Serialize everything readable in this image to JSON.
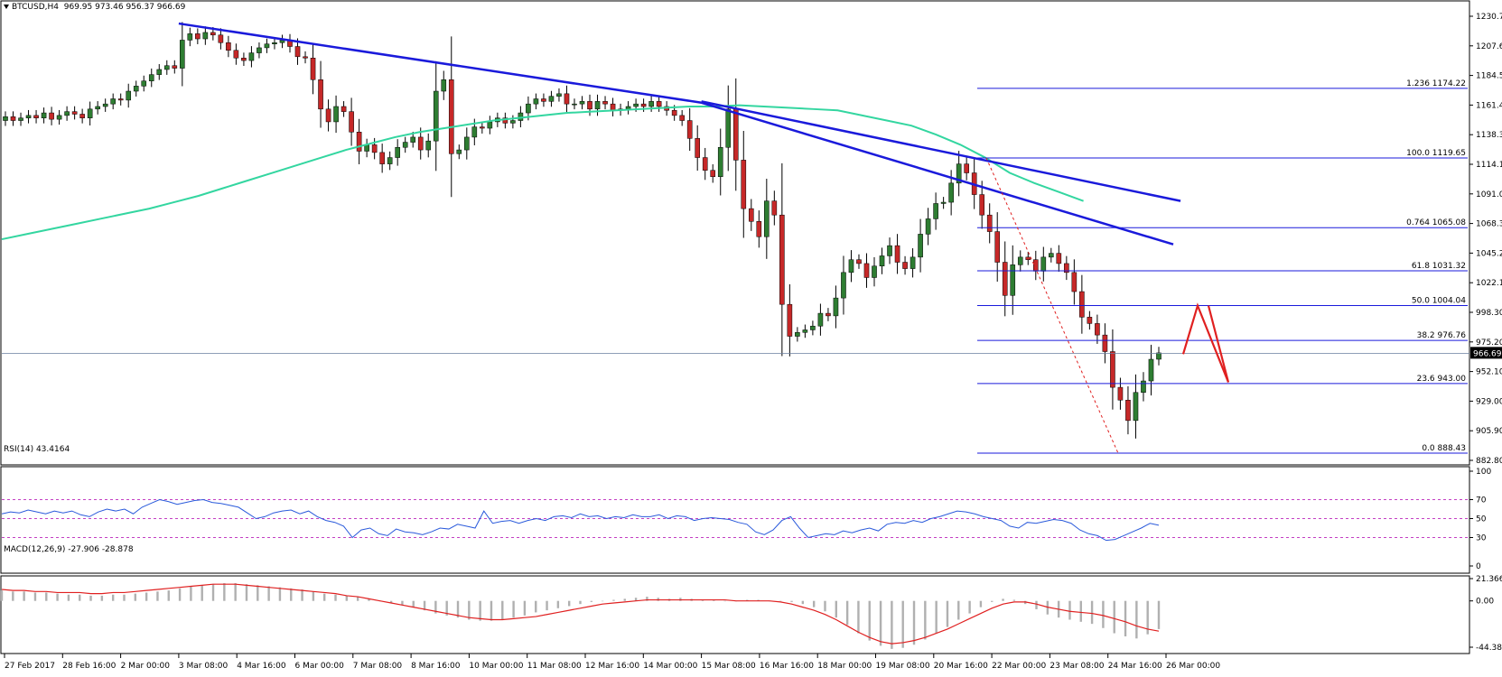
{
  "header": {
    "symbol": "BTCUSD,H4",
    "ohlc": "969.95 973.46 956.37 966.69",
    "menu_icon": "triangle-down-icon"
  },
  "colors": {
    "bull": "#2e7d32",
    "bear": "#c62828",
    "trendline": "#1a1adb",
    "ma": "#33d6a0",
    "fib": "#1a1adb",
    "rsi_line": "#2a5adb",
    "rsi_levels": "#b000b0",
    "macd_signal": "#e02020",
    "macd_hist": "#b0b0b0",
    "forecast": "#e02020",
    "price_line": "#6a7fa0"
  },
  "chart_data": [
    {
      "type": "candlestick",
      "title": "BTCUSD,H4",
      "ylim": [
        882.8,
        1230.7
      ],
      "y_ticks": [
        "1230.70",
        "1207.60",
        "1184.50",
        "1161.40",
        "1138.30",
        "1114.10",
        "1091.00",
        "1068.30",
        "1045.20",
        "1022.10",
        "998.30",
        "975.20",
        "952.10",
        "929.00",
        "905.90",
        "882.80"
      ],
      "x_ticks": [
        "27 Feb 2017",
        "28 Feb 16:00",
        "2 Mar 00:00",
        "3 Mar 08:00",
        "4 Mar 16:00",
        "6 Mar 00:00",
        "7 Mar 08:00",
        "8 Mar 16:00",
        "10 Mar 00:00",
        "11 Mar 08:00",
        "12 Mar 16:00",
        "14 Mar 00:00",
        "15 Mar 08:00",
        "16 Mar 16:00",
        "18 Mar 00:00",
        "19 Mar 08:00",
        "20 Mar 16:00",
        "22 Mar 00:00",
        "23 Mar 08:00",
        "24 Mar 16:00",
        "26 Mar 00:00"
      ],
      "current_price": "966.69",
      "close_prices": [
        1152,
        1149,
        1151,
        1153,
        1151,
        1155,
        1150,
        1153,
        1156,
        1154,
        1151,
        1158,
        1160,
        1162,
        1166,
        1165,
        1172,
        1176,
        1180,
        1185,
        1189,
        1192,
        1190,
        1212,
        1217,
        1213,
        1218,
        1216,
        1210,
        1204,
        1198,
        1196,
        1202,
        1206,
        1209,
        1210,
        1212,
        1207,
        1199,
        1198,
        1181,
        1158,
        1148,
        1160,
        1156,
        1140,
        1125,
        1130,
        1124,
        1115,
        1120,
        1128,
        1132,
        1136,
        1126,
        1133,
        1172,
        1181,
        1123,
        1126,
        1136,
        1144,
        1143,
        1148,
        1151,
        1147,
        1149,
        1155,
        1162,
        1166,
        1164,
        1168,
        1170,
        1162,
        1162,
        1164,
        1158,
        1164,
        1162,
        1157,
        1158,
        1160,
        1162,
        1160,
        1164,
        1160,
        1157,
        1153,
        1149,
        1135,
        1120,
        1110,
        1105,
        1128,
        1158,
        1118,
        1080,
        1070,
        1058,
        1086,
        1075,
        1005,
        980,
        983,
        985,
        988,
        998,
        996,
        1010,
        1030,
        1040,
        1037,
        1026,
        1035,
        1043,
        1051,
        1038,
        1033,
        1042,
        1060,
        1072,
        1084,
        1085,
        1100,
        1115,
        1108,
        1091,
        1075,
        1062,
        1038,
        1012,
        1036,
        1042,
        1040,
        1031,
        1042,
        1045,
        1037,
        1030,
        1015,
        995,
        990,
        981,
        968,
        940,
        930,
        914,
        936,
        945,
        962,
        967
      ],
      "overlays": {
        "moving_average": {
          "y_values": [
            1056,
            1060,
            1064,
            1068,
            1072,
            1076,
            1080,
            1085,
            1090,
            1096,
            1102,
            1108,
            1114,
            1120,
            1126,
            1131,
            1136,
            1140,
            1143,
            1146,
            1149,
            1151,
            1153,
            1155,
            1156,
            1157,
            1158,
            1159,
            1160,
            1160,
            1161,
            1160,
            1159,
            1158,
            1157,
            1153,
            1149,
            1145,
            1138,
            1130,
            1120,
            1108,
            1100,
            1093,
            1086
          ]
        },
        "trendlines": [
          {
            "from": [
              "3 Mar 08:00",
              1225
            ],
            "to": [
              "15 Mar 08:00",
              1163
            ]
          },
          {
            "from": [
              "15 Mar 08:00",
              1164
            ],
            "to": [
              "26 Mar 08:00",
              1086
            ]
          },
          {
            "from": [
              "15 Mar 08:00",
              1163
            ],
            "to": [
              "26 Mar 04:00",
              1052
            ]
          }
        ],
        "fibonacci": [
          {
            "label": "1.236  1174.22",
            "value": 1174.22
          },
          {
            "label": "100.0  1119.65",
            "value": 1119.65
          },
          {
            "label": "0.764  1065.08",
            "value": 1065.08
          },
          {
            "label": "61.8  1031.32",
            "value": 1031.32
          },
          {
            "label": "50.0  1004.04",
            "value": 1004.04
          },
          {
            "label": "38.2  976.76",
            "value": 976.76
          },
          {
            "label": "23.6  943.00",
            "value": 943.0
          },
          {
            "label": "0.0  888.43",
            "value": 888.43
          }
        ],
        "forecast_path": [
          [
            966,
            971
          ],
          [
            1004,
            1004
          ],
          [
            944,
            944
          ]
        ]
      }
    },
    {
      "type": "line",
      "title": "RSI(14) 43.4164",
      "ylim": [
        0,
        100
      ],
      "y_ticks": [
        "100",
        "70",
        "50",
        "30",
        "0"
      ],
      "levels": [
        70,
        50,
        30
      ],
      "values": [
        55,
        57,
        56,
        59,
        57,
        55,
        58,
        56,
        58,
        54,
        52,
        57,
        60,
        58,
        60,
        55,
        62,
        66,
        70,
        68,
        65,
        67,
        69,
        70,
        67,
        66,
        64,
        62,
        56,
        50,
        52,
        56,
        58,
        59,
        55,
        58,
        52,
        48,
        46,
        42,
        30,
        38,
        40,
        34,
        32,
        39,
        36,
        35,
        33,
        36,
        40,
        39,
        44,
        42,
        40,
        58,
        45,
        47,
        48,
        45,
        48,
        50,
        48,
        52,
        53,
        51,
        55,
        52,
        53,
        50,
        52,
        51,
        54,
        52,
        52,
        54,
        50,
        53,
        52,
        48,
        50,
        51,
        50,
        49,
        46,
        44,
        36,
        33,
        38,
        48,
        52,
        40,
        30,
        32,
        34,
        33,
        37,
        35,
        38,
        40,
        37,
        44,
        46,
        45,
        48,
        46,
        50,
        52,
        55,
        58,
        57,
        55,
        52,
        50,
        48,
        42,
        40,
        46,
        45,
        47,
        49,
        48,
        45,
        38,
        34,
        32,
        27,
        28,
        32,
        36,
        40,
        45,
        43
      ],
      "current_value": "43.4164"
    },
    {
      "type": "bar",
      "title": "MACD(12,26,9) -27.906 -28.878",
      "ylim": [
        -44.382,
        21.366
      ],
      "y_ticks": [
        "21.366",
        "0.00",
        "-44.382"
      ],
      "histogram": [
        10,
        9,
        9,
        8,
        8,
        7,
        6,
        6,
        5,
        5,
        6,
        6,
        7,
        8,
        9,
        10,
        12,
        14,
        15,
        16,
        17,
        17,
        16,
        15,
        14,
        13,
        12,
        11,
        9,
        7,
        6,
        5,
        4,
        2,
        0,
        -2,
        -4,
        -6,
        -9,
        -12,
        -14,
        -16,
        -18,
        -19,
        -19,
        -18,
        -16,
        -14,
        -11,
        -9,
        -7,
        -5,
        -3,
        -1,
        0,
        1,
        2,
        3,
        4,
        3,
        2,
        3,
        2,
        1,
        1,
        0,
        0,
        1,
        1,
        0,
        0,
        -1,
        -3,
        -6,
        -10,
        -16,
        -23,
        -31,
        -38,
        -43,
        -46,
        -45,
        -42,
        -37,
        -31,
        -25,
        -18,
        -12,
        -6,
        -1,
        2,
        1,
        -3,
        -8,
        -13,
        -16,
        -18,
        -20,
        -22,
        -26,
        -31,
        -34,
        -36,
        -32,
        -27
      ],
      "signal": [
        11,
        10,
        10,
        9,
        9,
        8,
        8,
        8,
        7,
        7,
        8,
        8,
        9,
        10,
        11,
        12,
        13,
        14,
        15,
        16,
        16,
        16,
        15,
        14,
        13,
        12,
        11,
        10,
        9,
        8,
        7,
        5,
        4,
        2,
        0,
        -2,
        -4,
        -6,
        -8,
        -10,
        -12,
        -14,
        -16,
        -17,
        -18,
        -18,
        -17,
        -16,
        -15,
        -13,
        -11,
        -9,
        -7,
        -5,
        -3,
        -2,
        -1,
        0,
        1,
        1,
        1,
        1,
        1,
        1,
        1,
        1,
        0,
        0,
        0,
        0,
        -1,
        -3,
        -6,
        -9,
        -13,
        -18,
        -24,
        -30,
        -35,
        -39,
        -41,
        -40,
        -38,
        -35,
        -31,
        -27,
        -22,
        -17,
        -12,
        -7,
        -3,
        -1,
        -1,
        -3,
        -6,
        -8,
        -10,
        -11,
        -12,
        -14,
        -17,
        -20,
        -24,
        -27,
        -29
      ],
      "current_value": "-27.906",
      "signal_value": "-28.878"
    }
  ]
}
